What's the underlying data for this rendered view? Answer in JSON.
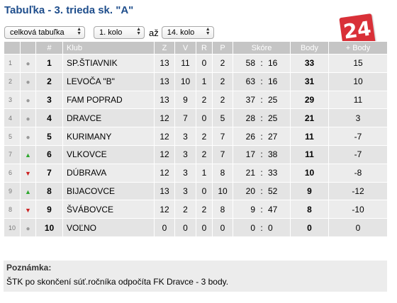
{
  "title": "Tabuľka - 3. trieda sk. \"A\"",
  "logo_text": "24",
  "controls": {
    "table_type": "celková tabuľka",
    "from_round": "1. kolo",
    "separator": "až",
    "to_round": "14. kolo"
  },
  "table": {
    "headers": [
      "#",
      "Klub",
      "Z",
      "V",
      "R",
      "P",
      "Skóre",
      "Body",
      "+ Body"
    ],
    "rows": [
      {
        "prev": "1",
        "trend": "same",
        "rank": "1",
        "club": "SP.ŠTIAVNIK",
        "z": "13",
        "v": "11",
        "r": "0",
        "p": "2",
        "gf": "58",
        "colon": ":",
        "ga": "16",
        "body": "33",
        "plus": "15"
      },
      {
        "prev": "2",
        "trend": "same",
        "rank": "2",
        "club": "LEVOČA \"B\"",
        "z": "13",
        "v": "10",
        "r": "1",
        "p": "2",
        "gf": "63",
        "colon": ":",
        "ga": "16",
        "body": "31",
        "plus": "10"
      },
      {
        "prev": "3",
        "trend": "same",
        "rank": "3",
        "club": "FAM POPRAD",
        "z": "13",
        "v": "9",
        "r": "2",
        "p": "2",
        "gf": "37",
        "colon": ":",
        "ga": "25",
        "body": "29",
        "plus": "11"
      },
      {
        "prev": "4",
        "trend": "same",
        "rank": "4",
        "club": "DRAVCE",
        "z": "12",
        "v": "7",
        "r": "0",
        "p": "5",
        "gf": "28",
        "colon": ":",
        "ga": "25",
        "body": "21",
        "plus": "3"
      },
      {
        "prev": "5",
        "trend": "same",
        "rank": "5",
        "club": "KURIMANY",
        "z": "12",
        "v": "3",
        "r": "2",
        "p": "7",
        "gf": "26",
        "colon": ":",
        "ga": "27",
        "body": "11",
        "plus": "-7"
      },
      {
        "prev": "7",
        "trend": "up",
        "rank": "6",
        "club": "VLKOVCE",
        "z": "12",
        "v": "3",
        "r": "2",
        "p": "7",
        "gf": "17",
        "colon": ":",
        "ga": "38",
        "body": "11",
        "plus": "-7"
      },
      {
        "prev": "6",
        "trend": "down",
        "rank": "7",
        "club": "DÚBRAVA",
        "z": "12",
        "v": "3",
        "r": "1",
        "p": "8",
        "gf": "21",
        "colon": ":",
        "ga": "33",
        "body": "10",
        "plus": "-8"
      },
      {
        "prev": "9",
        "trend": "up",
        "rank": "8",
        "club": "BIJACOVCE",
        "z": "13",
        "v": "3",
        "r": "0",
        "p": "10",
        "gf": "20",
        "colon": ":",
        "ga": "52",
        "body": "9",
        "plus": "-12"
      },
      {
        "prev": "8",
        "trend": "down",
        "rank": "9",
        "club": "ŠVÁBOVCE",
        "z": "12",
        "v": "2",
        "r": "2",
        "p": "8",
        "gf": "9",
        "colon": ":",
        "ga": "47",
        "body": "8",
        "plus": "-10"
      },
      {
        "prev": "10",
        "trend": "same",
        "rank": "10",
        "club": "VOĽNO",
        "z": "0",
        "v": "0",
        "r": "0",
        "p": "0",
        "gf": "0",
        "colon": ":",
        "ga": "0",
        "body": "0",
        "plus": "0"
      }
    ]
  },
  "note": {
    "heading": "Poznámka:",
    "text": "ŠTK po skončení súť.ročníka odpočíta FK Dravce - 3 body."
  },
  "trend_icons": {
    "same": "dot-icon",
    "up": "arrow-up-icon",
    "down": "arrow-down-icon"
  },
  "colors": {
    "title": "#1f4e8c",
    "header_bg": "#c5c5c5",
    "row_bg": "#ececec",
    "up": "#2ea82e",
    "down": "#cc2222",
    "logo_bg": "#d93038"
  }
}
